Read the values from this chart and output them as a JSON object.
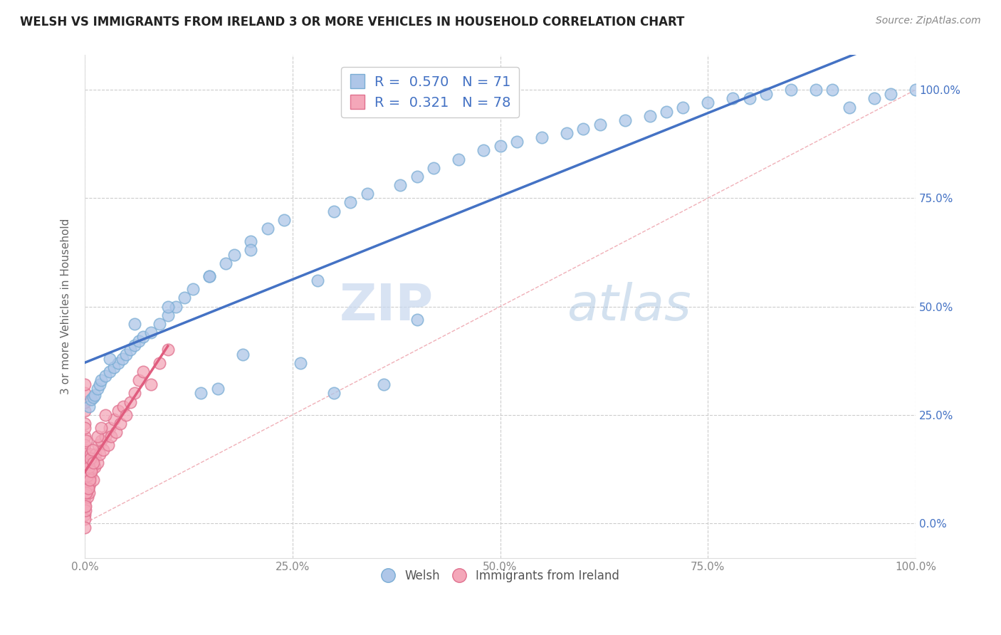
{
  "title": "WELSH VS IMMIGRANTS FROM IRELAND 3 OR MORE VEHICLES IN HOUSEHOLD CORRELATION CHART",
  "source": "Source: ZipAtlas.com",
  "ylabel": "3 or more Vehicles in Household",
  "xlim": [
    0.0,
    1.0
  ],
  "ylim": [
    -0.08,
    1.08
  ],
  "x_tick_labels": [
    "0.0%",
    "25.0%",
    "50.0%",
    "75.0%",
    "100.0%"
  ],
  "x_tick_vals": [
    0.0,
    0.25,
    0.5,
    0.75,
    1.0
  ],
  "y_tick_labels": [
    "0.0%",
    "25.0%",
    "50.0%",
    "75.0%",
    "100.0%"
  ],
  "y_tick_vals": [
    0.0,
    0.25,
    0.5,
    0.75,
    1.0
  ],
  "welsh_color": "#aec6e8",
  "welsh_edge_color": "#7aadd4",
  "ireland_color": "#f4a7b9",
  "ireland_edge_color": "#e0708e",
  "welsh_R": 0.57,
  "welsh_N": 71,
  "ireland_R": 0.321,
  "ireland_N": 78,
  "trend_blue": "#4472c4",
  "trend_pink": "#e05c7e",
  "watermark_zip": "ZIP",
  "watermark_atlas": "atlas",
  "legend_label_welsh": "Welsh",
  "legend_label_ireland": "Immigrants from Ireland",
  "welsh_x": [
    0.005,
    0.008,
    0.01,
    0.012,
    0.015,
    0.018,
    0.02,
    0.025,
    0.03,
    0.035,
    0.04,
    0.045,
    0.05,
    0.055,
    0.06,
    0.065,
    0.07,
    0.08,
    0.09,
    0.1,
    0.11,
    0.12,
    0.13,
    0.14,
    0.15,
    0.16,
    0.17,
    0.18,
    0.19,
    0.2,
    0.22,
    0.24,
    0.26,
    0.28,
    0.3,
    0.32,
    0.34,
    0.36,
    0.38,
    0.4,
    0.42,
    0.45,
    0.48,
    0.5,
    0.52,
    0.55,
    0.58,
    0.6,
    0.62,
    0.65,
    0.68,
    0.7,
    0.72,
    0.75,
    0.78,
    0.8,
    0.82,
    0.85,
    0.88,
    0.9,
    0.92,
    0.95,
    0.97,
    1.0,
    0.03,
    0.06,
    0.1,
    0.15,
    0.2,
    0.3,
    0.4
  ],
  "welsh_y": [
    0.27,
    0.285,
    0.29,
    0.295,
    0.31,
    0.32,
    0.33,
    0.34,
    0.35,
    0.36,
    0.37,
    0.38,
    0.39,
    0.4,
    0.41,
    0.42,
    0.43,
    0.44,
    0.46,
    0.48,
    0.5,
    0.52,
    0.54,
    0.3,
    0.57,
    0.31,
    0.6,
    0.62,
    0.39,
    0.65,
    0.68,
    0.7,
    0.37,
    0.56,
    0.72,
    0.74,
    0.76,
    0.32,
    0.78,
    0.8,
    0.82,
    0.84,
    0.86,
    0.87,
    0.88,
    0.89,
    0.9,
    0.91,
    0.92,
    0.93,
    0.94,
    0.95,
    0.96,
    0.97,
    0.98,
    0.98,
    0.99,
    1.0,
    1.0,
    1.0,
    0.96,
    0.98,
    0.99,
    1.0,
    0.38,
    0.46,
    0.5,
    0.57,
    0.63,
    0.3,
    0.47
  ],
  "ireland_x": [
    0.0,
    0.0,
    0.0,
    0.0,
    0.0,
    0.0,
    0.0,
    0.0,
    0.0,
    0.0,
    0.0,
    0.0,
    0.0,
    0.0,
    0.0,
    0.0,
    0.0,
    0.0,
    0.001,
    0.001,
    0.001,
    0.001,
    0.002,
    0.002,
    0.002,
    0.003,
    0.003,
    0.003,
    0.004,
    0.004,
    0.005,
    0.005,
    0.006,
    0.006,
    0.007,
    0.007,
    0.008,
    0.009,
    0.01,
    0.01,
    0.012,
    0.013,
    0.015,
    0.016,
    0.018,
    0.02,
    0.022,
    0.025,
    0.028,
    0.03,
    0.032,
    0.035,
    0.038,
    0.04,
    0.043,
    0.046,
    0.05,
    0.055,
    0.06,
    0.065,
    0.07,
    0.08,
    0.09,
    0.1,
    0.0,
    0.001,
    0.002,
    0.003,
    0.004,
    0.005,
    0.006,
    0.007,
    0.008,
    0.009,
    0.01,
    0.015,
    0.02,
    0.025
  ],
  "ireland_y": [
    0.02,
    0.05,
    0.08,
    0.11,
    0.14,
    0.17,
    0.2,
    0.23,
    0.26,
    0.28,
    0.3,
    0.32,
    0.22,
    0.18,
    0.1,
    0.06,
    0.04,
    0.01,
    0.03,
    0.07,
    0.12,
    0.16,
    0.09,
    0.13,
    0.19,
    0.06,
    0.11,
    0.15,
    0.08,
    0.12,
    0.07,
    0.1,
    0.09,
    0.14,
    0.11,
    0.16,
    0.12,
    0.13,
    0.1,
    0.15,
    0.13,
    0.16,
    0.14,
    0.18,
    0.16,
    0.19,
    0.17,
    0.2,
    0.18,
    0.22,
    0.2,
    0.24,
    0.21,
    0.26,
    0.23,
    0.27,
    0.25,
    0.28,
    0.3,
    0.33,
    0.35,
    0.32,
    0.37,
    0.4,
    -0.01,
    0.04,
    0.07,
    0.11,
    0.08,
    0.13,
    0.1,
    0.15,
    0.12,
    0.17,
    0.14,
    0.2,
    0.22,
    0.25
  ]
}
